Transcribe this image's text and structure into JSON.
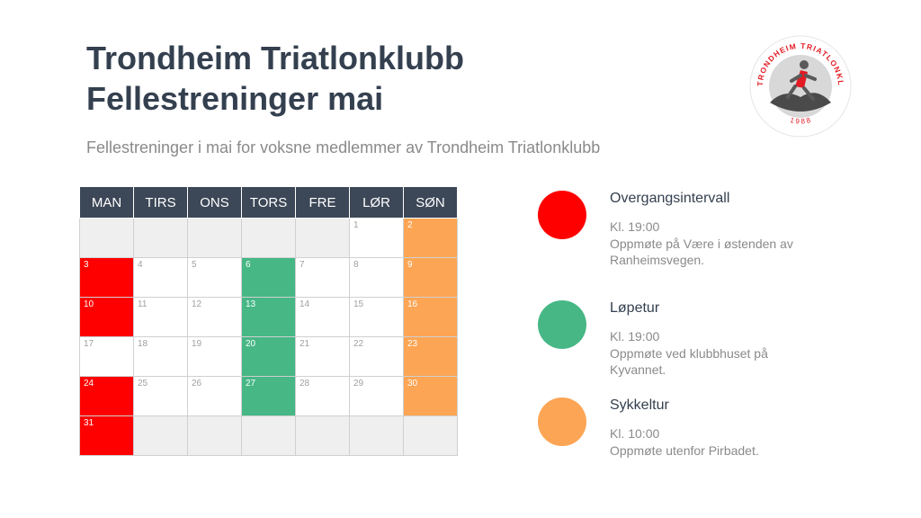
{
  "header": {
    "title_line1": "Trondheim Triatlonklubb",
    "title_line2": "Fellestreninger mai",
    "subtitle": "Fellestreninger i mai for voksne medlemmer av Trondheim Triatlonklubb"
  },
  "logo": {
    "text_top": "TRONDHEIM TRIATLONKLUBB",
    "year": "1988"
  },
  "calendar": {
    "weekdays": [
      "MAN",
      "TIRS",
      "ONS",
      "TORS",
      "FRE",
      "LØR",
      "SØN"
    ],
    "weeks": [
      [
        {
          "day": "",
          "type": "blank"
        },
        {
          "day": "",
          "type": "blank"
        },
        {
          "day": "",
          "type": "blank"
        },
        {
          "day": "",
          "type": "blank"
        },
        {
          "day": "",
          "type": "blank"
        },
        {
          "day": "1",
          "type": "none"
        },
        {
          "day": "2",
          "type": "sykkeltur"
        }
      ],
      [
        {
          "day": "3",
          "type": "overgangsintervall"
        },
        {
          "day": "4",
          "type": "none"
        },
        {
          "day": "5",
          "type": "none"
        },
        {
          "day": "6",
          "type": "lopetur"
        },
        {
          "day": "7",
          "type": "none"
        },
        {
          "day": "8",
          "type": "none"
        },
        {
          "day": "9",
          "type": "sykkeltur"
        }
      ],
      [
        {
          "day": "10",
          "type": "overgangsintervall"
        },
        {
          "day": "11",
          "type": "none"
        },
        {
          "day": "12",
          "type": "none"
        },
        {
          "day": "13",
          "type": "lopetur"
        },
        {
          "day": "14",
          "type": "none"
        },
        {
          "day": "15",
          "type": "none"
        },
        {
          "day": "16",
          "type": "sykkeltur"
        }
      ],
      [
        {
          "day": "17",
          "type": "none"
        },
        {
          "day": "18",
          "type": "none"
        },
        {
          "day": "19",
          "type": "none"
        },
        {
          "day": "20",
          "type": "lopetur"
        },
        {
          "day": "21",
          "type": "none"
        },
        {
          "day": "22",
          "type": "none"
        },
        {
          "day": "23",
          "type": "sykkeltur"
        }
      ],
      [
        {
          "day": "24",
          "type": "overgangsintervall"
        },
        {
          "day": "25",
          "type": "none"
        },
        {
          "day": "26",
          "type": "none"
        },
        {
          "day": "27",
          "type": "lopetur"
        },
        {
          "day": "28",
          "type": "none"
        },
        {
          "day": "29",
          "type": "none"
        },
        {
          "day": "30",
          "type": "sykkeltur"
        }
      ],
      [
        {
          "day": "31",
          "type": "overgangsintervall"
        },
        {
          "day": "",
          "type": "blank"
        },
        {
          "day": "",
          "type": "blank"
        },
        {
          "day": "",
          "type": "blank"
        },
        {
          "day": "",
          "type": "blank"
        },
        {
          "day": "",
          "type": "blank"
        },
        {
          "day": "",
          "type": "blank"
        }
      ]
    ]
  },
  "legend": [
    {
      "key": "overgangsintervall",
      "color": "#ff0000",
      "name": "Overgangsintervall",
      "time": "Kl. 19:00",
      "desc": "Oppmøte på Være i østenden av Ranheimsvegen."
    },
    {
      "key": "lopetur",
      "color": "#46b785",
      "name": "Løpetur",
      "time": "Kl. 19:00",
      "desc": "Oppmøte ved klubbhuset på Kyvannet."
    },
    {
      "key": "sykkeltur",
      "color": "#fca554",
      "name": "Sykkeltur",
      "time": "Kl. 10:00",
      "desc": "Oppmøte utenfor Pirbadet."
    }
  ]
}
